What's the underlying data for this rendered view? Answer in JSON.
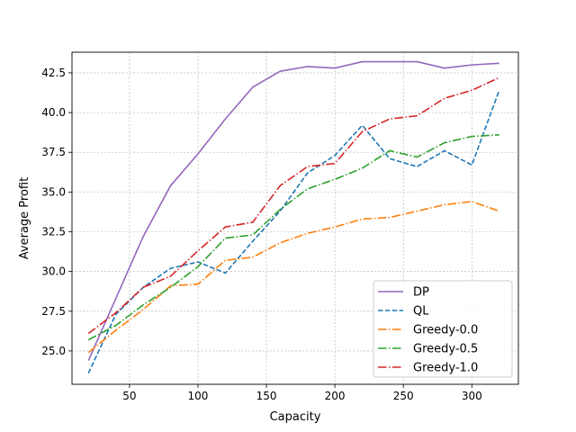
{
  "chart_data": {
    "type": "line",
    "title": "",
    "xlabel": "Capacity",
    "ylabel": "Average Profit",
    "xlim": [
      8,
      334
    ],
    "ylim": [
      22.9,
      43.8
    ],
    "xticks": [
      50,
      100,
      150,
      200,
      250,
      300
    ],
    "yticks": [
      25.0,
      27.5,
      30.0,
      32.5,
      35.0,
      37.5,
      40.0,
      42.5
    ],
    "grid": true,
    "legend_position": "lower-right",
    "x": [
      20,
      40,
      60,
      80,
      100,
      120,
      140,
      160,
      180,
      200,
      220,
      240,
      260,
      280,
      300,
      320
    ],
    "series": [
      {
        "name": "DP",
        "color": "#9467bd",
        "dash": "solid",
        "values": [
          24.4,
          28.3,
          32.2,
          35.4,
          37.4,
          39.6,
          41.6,
          42.6,
          42.9,
          42.8,
          43.2,
          43.2,
          43.2,
          42.8,
          43.0,
          43.1
        ]
      },
      {
        "name": "QL",
        "color": "#1f77b4",
        "dash": "dashed",
        "values": [
          23.6,
          27.3,
          29.0,
          30.2,
          30.6,
          29.9,
          31.9,
          33.8,
          36.2,
          37.3,
          39.2,
          37.1,
          36.6,
          37.6,
          36.7,
          41.4
        ]
      },
      {
        "name": "Greedy-0.0",
        "color": "#ff7f0e",
        "dash": "dashdot",
        "values": [
          24.9,
          26.3,
          27.6,
          29.1,
          29.2,
          30.7,
          30.9,
          31.8,
          32.4,
          32.8,
          33.3,
          33.4,
          33.8,
          34.2,
          34.4,
          33.8
        ]
      },
      {
        "name": "Greedy-0.5",
        "color": "#2ca02c",
        "dash": "dashdot",
        "values": [
          25.7,
          26.6,
          27.9,
          29.0,
          30.3,
          32.1,
          32.3,
          33.9,
          35.2,
          35.8,
          36.5,
          37.6,
          37.2,
          38.1,
          38.5,
          38.6
        ]
      },
      {
        "name": "Greedy-1.0",
        "color": "#d62728",
        "dash": "dashdot",
        "values": [
          26.1,
          27.4,
          29.0,
          29.7,
          31.3,
          32.8,
          33.1,
          35.4,
          36.6,
          36.8,
          38.8,
          39.6,
          39.8,
          40.9,
          41.4,
          42.2
        ]
      }
    ]
  }
}
